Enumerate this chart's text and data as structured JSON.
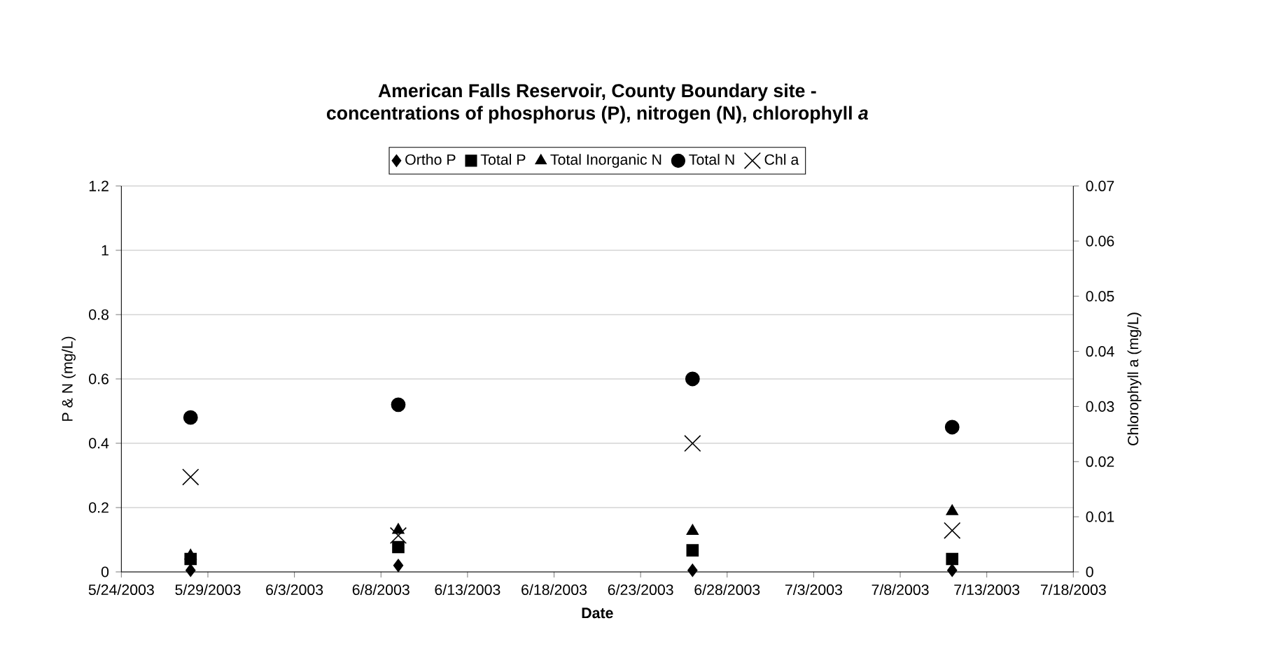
{
  "chart_data": {
    "type": "scatter",
    "title": "American Falls Reservoir, County Boundary site -\nconcentrations of phosphorus (P), nitrogen (N), chlorophyll *a*",
    "xlabel": "Date",
    "ylabel": "P & N (mg/L)",
    "y2label": "Chlorophyll  a (mg/L)",
    "x": [
      "2003-05-28",
      "2003-06-09",
      "2003-06-26",
      "2003-07-11"
    ],
    "series": [
      {
        "name": "Ortho P",
        "color": "#000000",
        "marker": "diamond",
        "values": [
          0.005,
          0.02,
          0.005,
          0.005
        ]
      },
      {
        "name": "Total P",
        "color": "#000000",
        "marker": "square",
        "values": [
          0.04,
          0.077,
          0.067,
          0.04
        ]
      },
      {
        "name": "Total Inorganic N",
        "color": "#000000",
        "marker": "triangle",
        "values": [
          0.05,
          0.13,
          0.127,
          0.188
        ]
      },
      {
        "name": "Total N",
        "color": "#000000",
        "marker": "circle",
        "values": [
          0.48,
          0.52,
          0.6,
          0.45
        ]
      },
      {
        "name": "Chl a",
        "color": "#000000",
        "marker": "cross",
        "axis": "y2",
        "values": [
          0.0172,
          0.0066,
          0.0233,
          0.0075
        ]
      }
    ],
    "xlim": [
      "2003-05-24",
      "2003-07-18"
    ],
    "xticks": [
      {
        "value": "2003-05-24",
        "label": "5/24/2003"
      },
      {
        "value": "2003-05-29",
        "label": "5/29/2003"
      },
      {
        "value": "2003-06-03",
        "label": "6/3/2003"
      },
      {
        "value": "2003-06-08",
        "label": "6/8/2003"
      },
      {
        "value": "2003-06-13",
        "label": "6/13/2003"
      },
      {
        "value": "2003-06-18",
        "label": "6/18/2003"
      },
      {
        "value": "2003-06-23",
        "label": "6/23/2003"
      },
      {
        "value": "2003-06-28",
        "label": "6/28/2003"
      },
      {
        "value": "2003-07-03",
        "label": "7/3/2003"
      },
      {
        "value": "2003-07-08",
        "label": "7/8/2003"
      },
      {
        "value": "2003-07-13",
        "label": "7/13/2003"
      },
      {
        "value": "2003-07-18",
        "label": "7/18/2003"
      }
    ],
    "ylim": [
      0,
      1.2
    ],
    "yticks": [
      0,
      0.2,
      0.4,
      0.6,
      0.8,
      1,
      1.2
    ],
    "y2lim": [
      0,
      0.07
    ],
    "y2ticks": [
      0,
      0.01,
      0.02,
      0.03,
      0.04,
      0.05,
      0.06,
      0.07
    ],
    "grid": "y",
    "legend": "top"
  }
}
